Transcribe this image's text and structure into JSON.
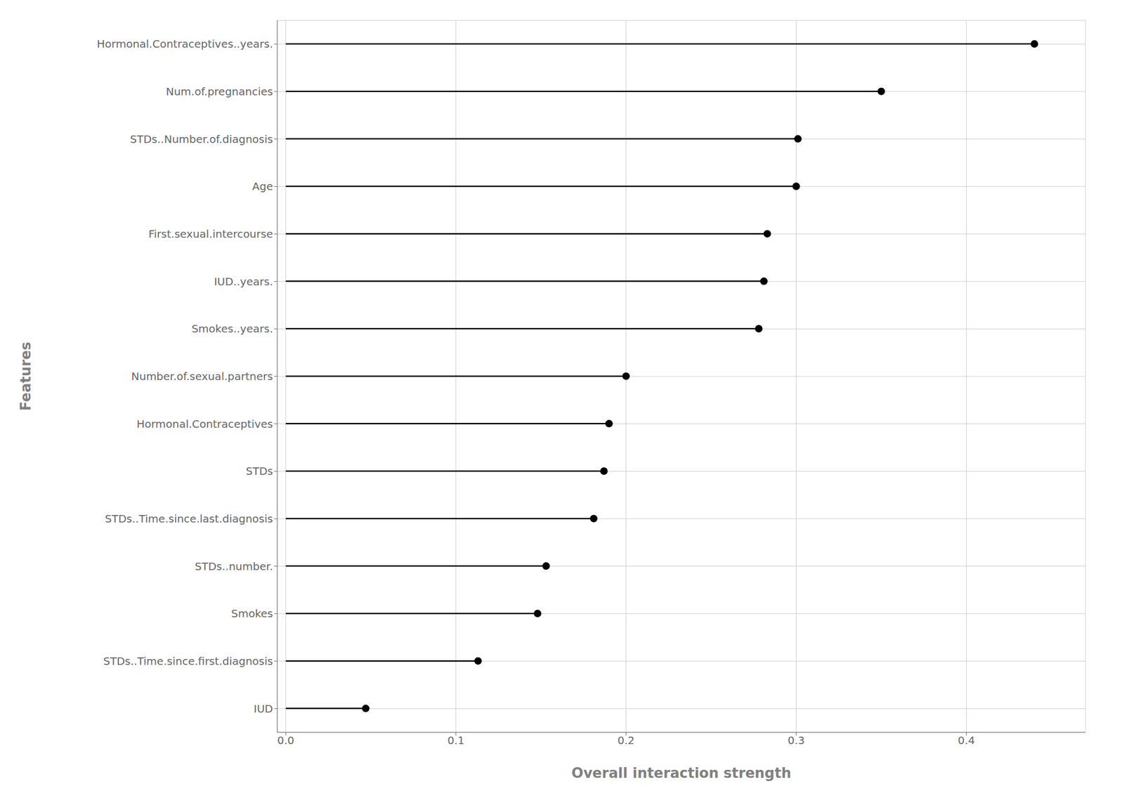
{
  "chart_data": {
    "type": "lollipop",
    "orientation": "horizontal",
    "categories": [
      "IUD",
      "STDs..Time.since.first.diagnosis",
      "Smokes",
      "STDs..number.",
      "STDs..Time.since.last.diagnosis",
      "STDs",
      "Hormonal.Contraceptives",
      "Number.of.sexual.partners",
      "Smokes..years.",
      "IUD..years.",
      "First.sexual.intercourse",
      "Age",
      "STDs..Number.of.diagnosis",
      "Num.of.pregnancies",
      "Hormonal.Contraceptives..years."
    ],
    "values": [
      0.047,
      0.113,
      0.148,
      0.153,
      0.181,
      0.187,
      0.19,
      0.2,
      0.278,
      0.281,
      0.283,
      0.3,
      0.301,
      0.35,
      0.44
    ],
    "xlabel": "Overall interaction strength",
    "ylabel": "Features",
    "xlim": [
      -0.005,
      0.47
    ],
    "xticks": [
      {
        "value": 0.0,
        "label": "0.0"
      },
      0.1,
      0.2,
      0.3,
      0.4
    ],
    "color": "#000000",
    "grid": true
  }
}
